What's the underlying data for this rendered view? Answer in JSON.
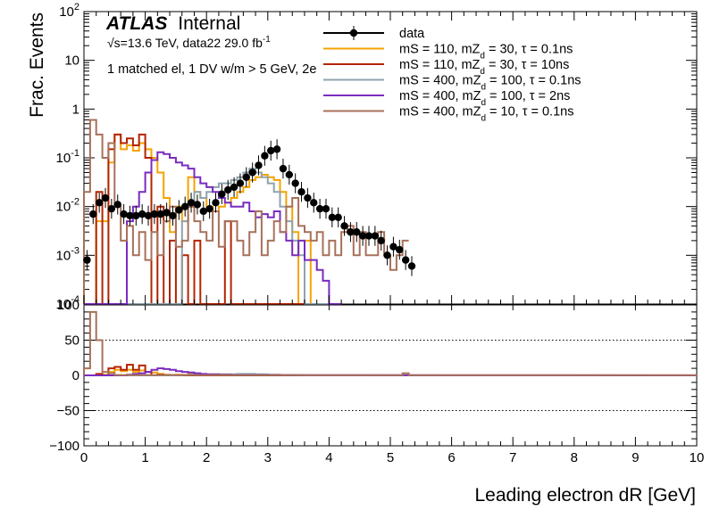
{
  "header": {
    "atlas": "ATLAS",
    "internal": "Internal",
    "energy_line": "√s=13.6 TeV, data22 29.0 fb",
    "energy_sup": "-1",
    "selection": "1 matched el, 1 DV w/m > 5 GeV, 2e"
  },
  "colors": {
    "data": "#000000",
    "orange": "#f5a300",
    "darkred": "#b32400",
    "gray": "#8fa3ad",
    "purple": "#7a2bbf",
    "brown": "#a8705a"
  },
  "chart_data": [
    {
      "type": "line",
      "panel": "main",
      "ylabel": "Frac. Events",
      "yscale": "log",
      "ylim": [
        0.0001,
        100
      ],
      "xlim": [
        0,
        10
      ],
      "y_ticks": [
        {
          "base": "10",
          "exp": "2"
        },
        {
          "base": "10",
          "exp": ""
        },
        {
          "base": "1",
          "exp": ""
        },
        {
          "base": "10",
          "exp": "-1"
        },
        {
          "base": "10",
          "exp": "-2"
        },
        {
          "base": "10",
          "exp": "-3"
        },
        {
          "base": "10",
          "exp": "-4"
        }
      ],
      "legend_position": "top-right",
      "legend": [
        {
          "text": "data",
          "sub": "",
          "rest": "",
          "color": "#000000",
          "marker": true
        },
        {
          "text": "mS = 110, mZ",
          "sub": "d",
          "rest": " = 30, τ = 0.1ns",
          "color": "#f5a300",
          "marker": false
        },
        {
          "text": "mS = 110, mZ",
          "sub": "d",
          "rest": " = 30, τ = 10ns",
          "color": "#b32400",
          "marker": false
        },
        {
          "text": "mS = 400, mZ",
          "sub": "d",
          "rest": " = 100, τ = 0.1ns",
          "color": "#8fa3ad",
          "marker": false
        },
        {
          "text": "mS = 400, mZ",
          "sub": "d",
          "rest": " = 100, τ = 2ns",
          "color": "#7a2bbf",
          "marker": false
        },
        {
          "text": "mS = 400, mZ",
          "sub": "d",
          "rest": " = 10, τ = 0.1ns",
          "color": "#a8705a",
          "marker": false
        }
      ],
      "data_points": {
        "x": [
          0.05,
          0.15,
          0.25,
          0.35,
          0.45,
          0.55,
          0.65,
          0.75,
          0.85,
          0.95,
          1.05,
          1.15,
          1.25,
          1.35,
          1.45,
          1.55,
          1.65,
          1.75,
          1.85,
          1.95,
          2.05,
          2.15,
          2.25,
          2.35,
          2.45,
          2.55,
          2.65,
          2.75,
          2.85,
          2.95,
          3.05,
          3.15,
          3.25,
          3.35,
          3.45,
          3.55,
          3.65,
          3.75,
          3.85,
          3.95,
          4.05,
          4.15,
          4.25,
          4.35,
          4.45,
          4.55,
          4.65,
          4.75,
          4.85,
          4.95,
          5.05,
          5.15,
          5.25,
          5.35
        ],
        "y": [
          0.0008,
          0.007,
          0.012,
          0.015,
          0.009,
          0.011,
          0.007,
          0.0065,
          0.0065,
          0.007,
          0.0065,
          0.007,
          0.007,
          0.0075,
          0.0065,
          0.0085,
          0.01,
          0.012,
          0.011,
          0.008,
          0.009,
          0.012,
          0.018,
          0.022,
          0.025,
          0.03,
          0.04,
          0.05,
          0.07,
          0.11,
          0.14,
          0.15,
          0.06,
          0.045,
          0.03,
          0.02,
          0.015,
          0.012,
          0.009,
          0.009,
          0.006,
          0.006,
          0.004,
          0.003,
          0.003,
          0.0025,
          0.0025,
          0.0025,
          0.002,
          0.001,
          0.0015,
          0.0013,
          0.0008,
          0.0006
        ]
      },
      "series": [
        {
          "color": "#f5a300",
          "x_start": 0.0,
          "bin_width": 0.1,
          "values": [
            0,
            0,
            0.005,
            0.005,
            0.08,
            0.3,
            0.15,
            0.18,
            0.14,
            0.2,
            0.15,
            0.1,
            0.05,
            0.015,
            0.003,
            0.01,
            0.005,
            0.04,
            0.02,
            0.015,
            0.01,
            0.008,
            0.01,
            0.012,
            0.015,
            0.02,
            0.025,
            0.035,
            0.04,
            0.045,
            0.04,
            0.035,
            0.02,
            0.01,
            0.003,
            0,
            0.002,
            0,
            0,
            0,
            0,
            0
          ]
        },
        {
          "color": "#b32400",
          "x_start": 0.0,
          "bin_width": 0.1,
          "values": [
            0,
            0,
            0.02,
            0,
            0.15,
            0.3,
            0.2,
            0.25,
            0.18,
            0.3,
            0.1,
            0,
            0.01,
            0,
            0.002,
            0,
            0.001,
            0,
            0.002,
            0,
            0,
            0,
            0,
            0.005,
            0,
            0,
            0,
            0,
            0,
            0,
            0,
            0,
            0,
            0,
            0,
            0,
            0,
            0,
            0,
            0,
            0,
            0
          ]
        },
        {
          "color": "#8fa3ad",
          "x_start": 0.0,
          "bin_width": 0.1,
          "values": [
            0,
            0,
            0,
            0,
            0,
            0,
            0,
            0,
            0,
            0,
            0,
            0,
            0,
            0,
            0,
            0,
            0.005,
            0.01,
            0.02,
            0.015,
            0.02,
            0.025,
            0.03,
            0.03,
            0.035,
            0.04,
            0.05,
            0.06,
            0.05,
            0.04,
            0.03,
            0.02,
            0.01,
            0.005,
            0.002,
            0.001,
            0,
            0,
            0,
            0,
            0,
            0
          ]
        },
        {
          "color": "#7a2bbf",
          "x_start": 0.0,
          "bin_width": 0.1,
          "values": [
            0,
            0,
            0,
            0,
            0,
            0,
            0,
            0.005,
            0.01,
            0.02,
            0.05,
            0.09,
            0.13,
            0.12,
            0.1,
            0.08,
            0.07,
            0.06,
            0.04,
            0.03,
            0.025,
            0.02,
            0.015,
            0.012,
            0.01,
            0.01,
            0.012,
            0.008,
            0.006,
            0.007,
            0.006,
            0.008,
            0.003,
            0.002,
            0.001,
            0.002,
            0.0008,
            0.0008,
            0.0005,
            0.0003,
            0,
            0
          ]
        },
        {
          "color": "#a8705a",
          "x_start": 0.0,
          "bin_width": 0.1,
          "values": [
            0.02,
            0.6,
            0.3,
            0.1,
            0.2,
            0.01,
            0.002,
            0.004,
            0.001,
            0.003,
            0.0008,
            0.003,
            0.001,
            0.005,
            0.01,
            0.0015,
            0.002,
            0.01,
            0.005,
            0.003,
            0.002,
            0.008,
            0.0015,
            0.005,
            0.005,
            0.002,
            0.001,
            0.003,
            0.008,
            0.001,
            0.002,
            0.005,
            0.003,
            0.01,
            0.015,
            0.004,
            0.003,
            0.002,
            0.003,
            0.001,
            0.002,
            0.001,
            0.003,
            0.004,
            0.001,
            0.003,
            0.001,
            0.001,
            0.003,
            0.001,
            0.0005,
            0.001,
            0.002
          ]
        }
      ]
    },
    {
      "type": "line",
      "panel": "ratio",
      "ylim": [
        -100,
        100
      ],
      "y_ticks": [
        "100",
        "50",
        "0",
        "−50",
        "−100"
      ],
      "xlim": [
        0,
        10
      ],
      "x_ticks": [
        "0",
        "1",
        "2",
        "3",
        "4",
        "5",
        "6",
        "7",
        "8",
        "9",
        "10"
      ],
      "xlabel": "Leading electron dR [GeV]",
      "series": [
        {
          "color": "#f5a300",
          "x_start": 0.0,
          "bin_width": 0.1,
          "values": [
            0,
            0,
            1,
            1,
            5,
            8,
            6,
            8,
            5,
            7,
            5,
            4,
            2,
            1,
            0.5,
            1,
            0.5,
            2,
            1,
            1,
            0.5,
            0.5,
            0.5,
            0.5,
            0.5,
            0.5,
            0.5,
            0.5,
            0.5,
            0.5,
            0.5,
            0.5,
            0.5,
            0.5,
            0.5,
            0,
            0,
            0,
            0,
            0
          ]
        },
        {
          "color": "#b32400",
          "x_start": 0.0,
          "bin_width": 0.1,
          "values": [
            0,
            0,
            2,
            0,
            10,
            12,
            8,
            15,
            8,
            14,
            5,
            0,
            1,
            0,
            0,
            0,
            0,
            0,
            0,
            0,
            0,
            0,
            0,
            0,
            0,
            0,
            0,
            0,
            0,
            0
          ]
        },
        {
          "color": "#8fa3ad",
          "x_start": 0.0,
          "bin_width": 0.1,
          "values": [
            0,
            0,
            0,
            0,
            0,
            0,
            0,
            0,
            0,
            0,
            0,
            0,
            0,
            0,
            0,
            0,
            0.5,
            1,
            1,
            1,
            1,
            1,
            1.5,
            1.5,
            1.5,
            2,
            2,
            2,
            1.5,
            1.5,
            1,
            1,
            0.5,
            0.5,
            0.3,
            0.3,
            0,
            0,
            0,
            0
          ]
        },
        {
          "color": "#7a2bbf",
          "x_start": 0.0,
          "bin_width": 0.1,
          "values": [
            0,
            0,
            0,
            0,
            0,
            0,
            0,
            1,
            2,
            3,
            5,
            8,
            10,
            9,
            8,
            6,
            5,
            4,
            3,
            2,
            1.5,
            1.5,
            1,
            1,
            0.5,
            0.5,
            0.5,
            0.5,
            0.5,
            0.5,
            0.5,
            0.5,
            0.3,
            0.3,
            0.3,
            0.3,
            0.3,
            0.3,
            0.2,
            0.2,
            0.2,
            0.2,
            0.2,
            0.2,
            0.2,
            0.2
          ]
        },
        {
          "color": "#a8705a",
          "x_start": 0.0,
          "bin_width": 0.1,
          "values": [
            10,
            90,
            50,
            5,
            3,
            0.5,
            0.2,
            0.5,
            0.2,
            0.3,
            0.2,
            0.3,
            0.2,
            0.5,
            0.5,
            0.2,
            0.2,
            0.5,
            0.3,
            0.2,
            0.2,
            0.5,
            0.2,
            0.3,
            0.3,
            0.2,
            0.2,
            0.2,
            0.3,
            0.2,
            0.2,
            0.2,
            0.2,
            0.3,
            0.5,
            0.2,
            0.2,
            0.2,
            0.2,
            0.2,
            0.2,
            0.2,
            0.2,
            0.2,
            0.2,
            0.2,
            0.2,
            0.2,
            0.2,
            0.2,
            0.2,
            0.2,
            3,
            0.2,
            0.2,
            0.2,
            0.2,
            0.2,
            0.2,
            0.2,
            0.2,
            0.2,
            0.2,
            0.2,
            0.2,
            0.2,
            0.2,
            0.2,
            0.2,
            0.2,
            0.2,
            0.2,
            0.2,
            0.2,
            0.2,
            0.2,
            0.2,
            0.2,
            0.2,
            0.2,
            0.2,
            0.2,
            0.2,
            0.2,
            0.2,
            0.2,
            0.2,
            0.2,
            0.2,
            0.2,
            0.2,
            0.2,
            0.2,
            0.2,
            0.2,
            0.2,
            0.2,
            0.2,
            0.2,
            0.2
          ]
        }
      ]
    }
  ]
}
